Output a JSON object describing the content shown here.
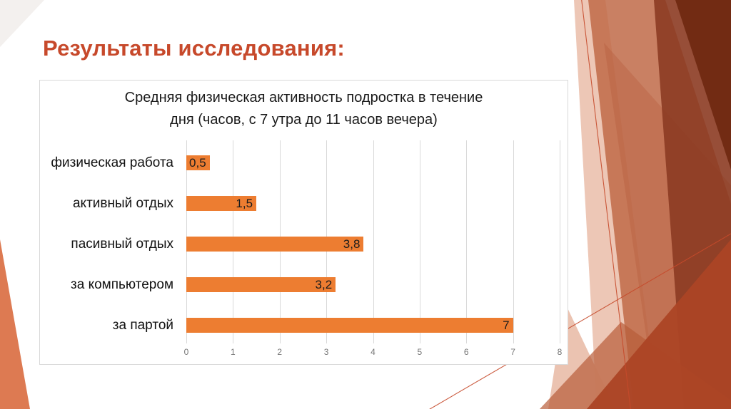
{
  "slide": {
    "title": "Результаты исследования:",
    "title_color": "#C7492B"
  },
  "chart_data": {
    "type": "bar",
    "orientation": "horizontal",
    "title": "Средняя физическая активность подростка в течение дня (часов, с 7 утра до 11 часов вечера)",
    "title_lines": [
      "Средняя физическая активность подростка в течение",
      "дня (часов, с 7 утра до 11 часов вечера)"
    ],
    "categories": [
      "физическая работа",
      "активный отдых",
      "пасивный отдых",
      "за компьютером",
      "за партой"
    ],
    "values": [
      0.5,
      1.5,
      3.8,
      3.2,
      7
    ],
    "value_labels": [
      "0,5",
      "1,5",
      "3,8",
      "3,2",
      "7"
    ],
    "xlim": [
      0,
      8
    ],
    "x_ticks": [
      "0",
      "1",
      "2",
      "3",
      "4",
      "5",
      "6",
      "7",
      "8"
    ],
    "grid": true,
    "legend": false,
    "bar_color": "#ED7D31",
    "gridline_color": "#D9D9D9",
    "axis_tick_color": "#757575",
    "text_color": "#1A1A1A"
  },
  "theme": {
    "decoration_palette": [
      "#E9B9A4",
      "#C06A48",
      "#8C3B22",
      "#6E2810",
      "#AC4525",
      "#B85C39",
      "#DD7A52"
    ],
    "accent_line_color": "#C64A2B",
    "background_color": "#FFFFFF"
  }
}
